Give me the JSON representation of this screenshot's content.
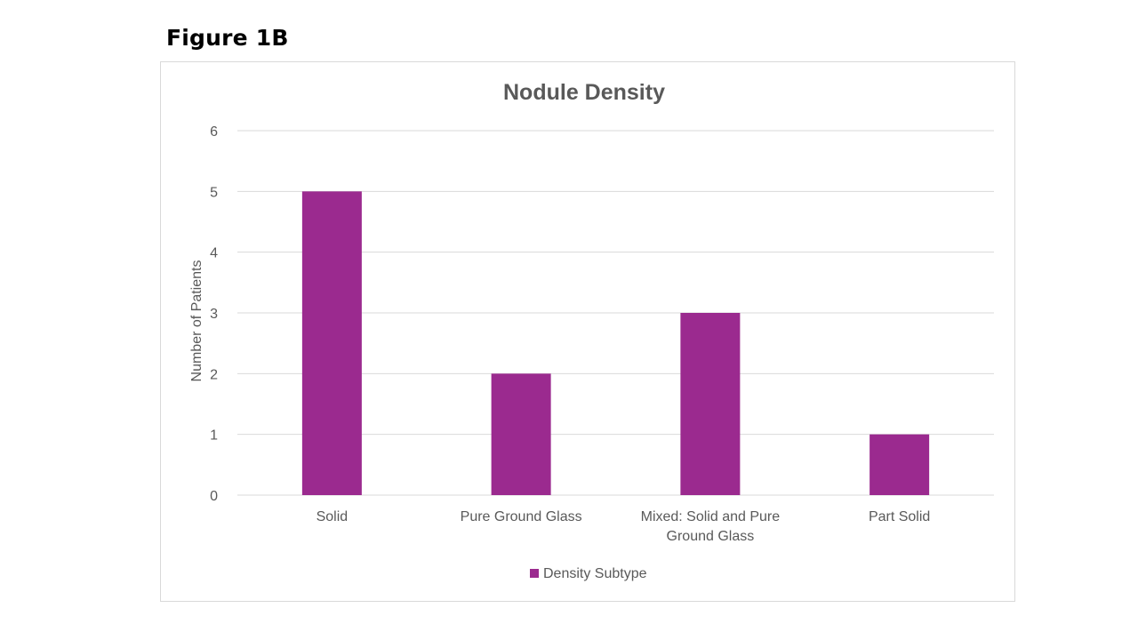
{
  "figure_label": "Figure 1B",
  "colors": {
    "bar": "#9b2a8f",
    "gridline": "#d9d9d9",
    "text": "#595959",
    "frame_border": "#d9d9d9"
  },
  "chart_data": {
    "type": "bar",
    "title": "Nodule Density",
    "xlabel": "",
    "ylabel": "Number of Patients",
    "categories": [
      [
        "Solid"
      ],
      [
        "Pure Ground Glass"
      ],
      [
        "Mixed: Solid and Pure",
        "Ground Glass"
      ],
      [
        "Part Solid"
      ]
    ],
    "series": [
      {
        "name": "Density Subtype",
        "values": [
          5,
          2,
          3,
          1
        ]
      }
    ],
    "ylim": [
      0,
      6
    ],
    "yticks": [
      0,
      1,
      2,
      3,
      4,
      5,
      6
    ],
    "grid": true,
    "legend_position": "bottom"
  }
}
